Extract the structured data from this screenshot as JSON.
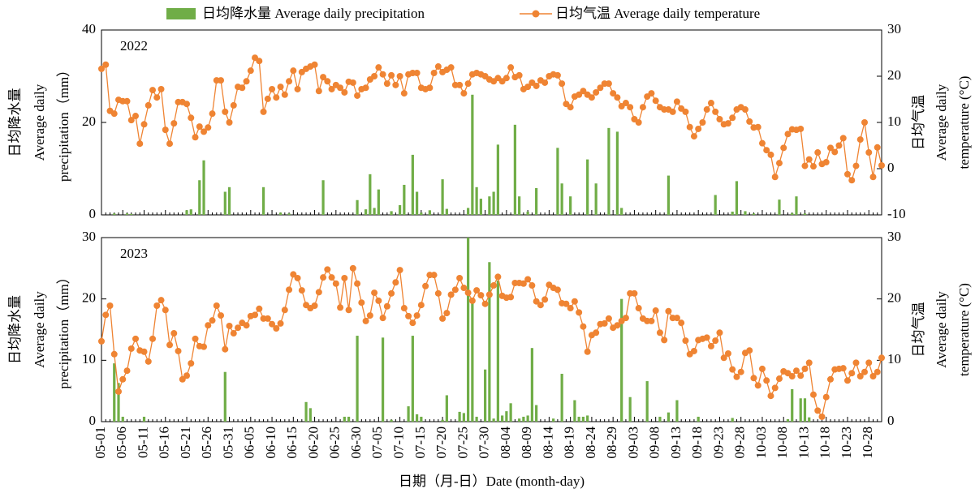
{
  "chart_data": [
    {
      "type": "combo",
      "label": "2022",
      "series": [
        {
          "name": "日均降水量 Average daily precipitation",
          "type": "bar",
          "color": "#70ad47",
          "axis": "y",
          "values": [
            0,
            0,
            0,
            0.3,
            0,
            0,
            0.3,
            0.2,
            0,
            0,
            0,
            0,
            0,
            0,
            0,
            0,
            0,
            0,
            0,
            0,
            1,
            1.2,
            0,
            7.5,
            11.8,
            0,
            0,
            0,
            0,
            5,
            6,
            0,
            0,
            0,
            0,
            0,
            0,
            0,
            6,
            0,
            0,
            0,
            0.5,
            0,
            0.3,
            0,
            0,
            0,
            0,
            0,
            0,
            0,
            7.5,
            0,
            0,
            0,
            0,
            0,
            0,
            0,
            3.2,
            0,
            1.2,
            8.8,
            1.5,
            5.5,
            0,
            0,
            0.8,
            0,
            2.1,
            6.5,
            0,
            13,
            5,
            0.5,
            0,
            1,
            0,
            0,
            7.7,
            1.3,
            0,
            0,
            0,
            0,
            1.5,
            26,
            6,
            3.5,
            0,
            4,
            5,
            15.2,
            0,
            0,
            0,
            19.5,
            4,
            0,
            0.7,
            0,
            5.8,
            0,
            0,
            0,
            0,
            14.5,
            6.8,
            0,
            4,
            0,
            0,
            0,
            12,
            0,
            6.8,
            0,
            0,
            18.8,
            0,
            18,
            1.5,
            0,
            0,
            0,
            0,
            0,
            0,
            0,
            0,
            0,
            0,
            8.5,
            0,
            0,
            0,
            0,
            0,
            0,
            0,
            0,
            0,
            0,
            4.3,
            0,
            0,
            0,
            0.7,
            7.3,
            0,
            0.8,
            0,
            0.3,
            0,
            0,
            0,
            0,
            0,
            3.3,
            0,
            0,
            0.4,
            4,
            0,
            0.3,
            0,
            0,
            0,
            0,
            0,
            0,
            0,
            0,
            0,
            0,
            0,
            0,
            0,
            0,
            0,
            0,
            0,
            0
          ]
        },
        {
          "name": "日均气温 Average daily temperature",
          "type": "line",
          "color": "#ef8433",
          "axis": "y2",
          "values": [
            21.6,
            22.5,
            12.5,
            11.9,
            14.9,
            14.6,
            14.6,
            10.5,
            11.4,
            5.4,
            9.6,
            13.7,
            17,
            15.4,
            17.2,
            8.4,
            5.4,
            9.8,
            14.4,
            14.4,
            14,
            11,
            6.8,
            9.1,
            8,
            8.9,
            11.9,
            19.1,
            19.1,
            12.3,
            10,
            13.7,
            17.7,
            17.5,
            18.9,
            21.2,
            24,
            23.3,
            12.3,
            15.1,
            17.2,
            15.4,
            17.7,
            16,
            18.9,
            21.2,
            17.2,
            20.9,
            21.6,
            22.1,
            22.5,
            16.8,
            19.8,
            18.9,
            17.2,
            18.1,
            17.5,
            16.5,
            18.8,
            18.6,
            15.8,
            17.2,
            17.5,
            19.3,
            20,
            21.9,
            20.4,
            18.4,
            20.2,
            18.1,
            20,
            16.3,
            20.4,
            20.7,
            20.7,
            17.5,
            17.2,
            17.5,
            20.7,
            22.1,
            20.9,
            21.4,
            21.9,
            18.1,
            18.1,
            16.3,
            18.4,
            20.4,
            20.7,
            20.4,
            20,
            19.3,
            18.9,
            19.6,
            18.9,
            19.6,
            21.9,
            19.8,
            20.2,
            17.2,
            17.7,
            18.6,
            17.9,
            19.1,
            18.6,
            20,
            20.4,
            20.2,
            18.4,
            14,
            13.3,
            15.6,
            16,
            16.8,
            16,
            15.4,
            16.5,
            17.5,
            18.4,
            18.4,
            16.3,
            15.4,
            13.5,
            14.2,
            13.3,
            10.7,
            10,
            13.3,
            15.6,
            16.3,
            14.7,
            13.3,
            12.8,
            12.8,
            12.3,
            14.5,
            13,
            12.3,
            9,
            7,
            8.6,
            10,
            12.8,
            14.2,
            12.3,
            10.7,
            9.6,
            9.8,
            11,
            12.8,
            13.3,
            12.8,
            10.2,
            8.9,
            9,
            5.5,
            4,
            3,
            -1.8,
            1.2,
            4.5,
            7.5,
            8.5,
            8.4,
            8.6,
            0.6,
            2,
            0.5,
            3.5,
            1,
            1.4,
            4.5,
            3.6,
            5,
            6.6,
            -1.2,
            -2.5,
            0.6,
            6.3,
            10,
            3.5,
            -1.8,
            4.6,
            0.7
          ]
        }
      ],
      "ylim": [
        0,
        40
      ],
      "yticks": [
        0,
        20,
        40
      ],
      "y2lim": [
        -10,
        30
      ],
      "y2ticks": [
        -10,
        0,
        10,
        20,
        30
      ],
      "ylabel": [
        "日均降水量",
        "Average daily",
        "precipitation（mm）"
      ],
      "y2label": [
        "日均气温",
        "Average daily",
        "temperature (°C)"
      ]
    },
    {
      "type": "combo",
      "label": "2023",
      "categories": [
        "05-01",
        null,
        null,
        null,
        null,
        "05-06",
        null,
        null,
        null,
        null,
        "05-11",
        null,
        null,
        null,
        null,
        "05-16",
        null,
        null,
        null,
        null,
        "05-21",
        null,
        null,
        null,
        null,
        "05-26",
        null,
        null,
        null,
        null,
        "05-31",
        null,
        null,
        null,
        null,
        "06-05",
        null,
        null,
        null,
        null,
        "06-10",
        null,
        null,
        null,
        null,
        "06-15",
        null,
        null,
        null,
        null,
        "06-20",
        null,
        null,
        null,
        null,
        "06-25",
        null,
        null,
        null,
        null,
        "06-30",
        null,
        null,
        null,
        null,
        "07-05",
        null,
        null,
        null,
        null,
        "07-10",
        null,
        null,
        null,
        null,
        "07-15",
        null,
        null,
        null,
        null,
        "07-20",
        null,
        null,
        null,
        null,
        "07-25",
        null,
        null,
        null,
        null,
        "07-30",
        null,
        null,
        null,
        null,
        "08-04",
        null,
        null,
        null,
        null,
        "08-09",
        null,
        null,
        null,
        null,
        "08-14",
        null,
        null,
        null,
        null,
        "08-19",
        null,
        null,
        null,
        null,
        "08-24",
        null,
        null,
        null,
        null,
        "08-29",
        null,
        null,
        null,
        null,
        "09-03",
        null,
        null,
        null,
        null,
        "09-08",
        null,
        null,
        null,
        null,
        "09-13",
        null,
        null,
        null,
        null,
        "09-18",
        null,
        null,
        null,
        null,
        "09-23",
        null,
        null,
        null,
        null,
        "09-28",
        null,
        null,
        null,
        null,
        "10-03",
        null,
        null,
        null,
        null,
        "10-08",
        null,
        null,
        null,
        null,
        "10-13",
        null,
        null,
        null,
        null,
        "10-18",
        null,
        null,
        null,
        null,
        "10-23",
        null,
        null,
        null,
        null,
        "10-28",
        null,
        null,
        null
      ],
      "series": [
        {
          "type": "bar",
          "color": "#70ad47",
          "axis": "y",
          "values": [
            0,
            0,
            0,
            9.5,
            6.3,
            0.8,
            0,
            0,
            0,
            0,
            0.8,
            0,
            0,
            0,
            0,
            0,
            0,
            0,
            0,
            0,
            0,
            0,
            0,
            0,
            0,
            0,
            0,
            0,
            0,
            8.1,
            0,
            0,
            0,
            0,
            0,
            0,
            0,
            0,
            0,
            0,
            0,
            0,
            0,
            0,
            0,
            0,
            0,
            0,
            3.2,
            2.2,
            0,
            0,
            0,
            0,
            0,
            0,
            0,
            0.8,
            0.8,
            0,
            14,
            0,
            0,
            0,
            0,
            0,
            13.7,
            0,
            0.3,
            0,
            0,
            0,
            2.5,
            14,
            1.2,
            0.8,
            0,
            0,
            0,
            0,
            0.3,
            4.3,
            0,
            0,
            1.6,
            1.4,
            30,
            20,
            0.8,
            0,
            8.5,
            26,
            0.5,
            23,
            1,
            1.7,
            3,
            0,
            0.5,
            0.8,
            1,
            12,
            2.7,
            0,
            0,
            0,
            0.5,
            0,
            7.8,
            0,
            0,
            3.5,
            0.8,
            0.8,
            1,
            0,
            0,
            0,
            0,
            0,
            0,
            0,
            20,
            0,
            4,
            0,
            0,
            0,
            6.6,
            0,
            0,
            0.8,
            0,
            1.5,
            0,
            3.5,
            0,
            0,
            0,
            0,
            0.8,
            0,
            0,
            0,
            0,
            0,
            0,
            0,
            0.6,
            0,
            0,
            0,
            0,
            0,
            0,
            0,
            0,
            0,
            0,
            0,
            0,
            0.4,
            5.3,
            0,
            3.8,
            3.8,
            0.7,
            0,
            0,
            0,
            0,
            0,
            0,
            0,
            0,
            0,
            0,
            0,
            0,
            0,
            0,
            0,
            0,
            0
          ]
        },
        {
          "type": "line",
          "color": "#ef8433",
          "axis": "y2",
          "values": [
            13.1,
            17.4,
            18.9,
            11,
            4.9,
            6.9,
            8.3,
            11.9,
            13.5,
            11.6,
            11.4,
            9.8,
            13.5,
            18.9,
            19.8,
            18.2,
            12.5,
            14.4,
            11.5,
            6.9,
            7.5,
            9.5,
            13.5,
            12.3,
            12.2,
            15.7,
            16.5,
            18.9,
            17.3,
            11.8,
            15.6,
            14.4,
            15.3,
            16.1,
            15.7,
            17.2,
            17.4,
            18.4,
            16.8,
            16.8,
            15.9,
            15.2,
            16,
            18.2,
            21.5,
            24,
            23.4,
            21.4,
            19,
            18.5,
            18.9,
            21.1,
            23.5,
            24.8,
            23.5,
            22.5,
            18.6,
            23.4,
            18.2,
            25,
            22.5,
            19.4,
            16.4,
            17.3,
            21,
            19.7,
            16.9,
            18.8,
            20.9,
            22.7,
            24.7,
            18.5,
            17.2,
            16.1,
            17.3,
            19,
            22.1,
            23.9,
            23.9,
            20.9,
            16.8,
            17.7,
            20.7,
            21.5,
            23.4,
            21.8,
            21,
            19.7,
            21.4,
            20.6,
            19.2,
            20.7,
            22.2,
            23.6,
            20.5,
            20.2,
            20.3,
            22.6,
            22.6,
            22.5,
            23.2,
            22.2,
            19.6,
            19,
            19.9,
            22.3,
            21.8,
            21.5,
            19.3,
            19.2,
            18.5,
            19.6,
            17.8,
            15.5,
            11.4,
            14.1,
            14.5,
            15.9,
            16,
            16.8,
            15.3,
            15.7,
            16.4,
            16.9,
            20.9,
            20.9,
            18.5,
            16.8,
            16.4,
            16.4,
            18.1,
            14.5,
            13.3,
            18,
            16.9,
            16.9,
            16.1,
            13.2,
            11,
            11.5,
            13.3,
            13.5,
            13.7,
            12.3,
            13.2,
            14.5,
            10.4,
            11.1,
            8.5,
            7.3,
            8.1,
            11.2,
            11.6,
            7.1,
            5.9,
            8.6,
            6.7,
            4.2,
            5.5,
            7,
            8.2,
            7.9,
            7.4,
            8.3,
            7.5,
            8.6,
            9.6,
            4.4,
            1.8,
            0.8,
            4,
            6.9,
            8.5,
            8.6,
            8.7,
            6.7,
            7.9,
            9.6,
            7.4,
            8.1,
            9.6,
            7.4,
            8.1,
            10.4
          ]
        }
      ],
      "ylim": [
        0,
        30
      ],
      "yticks": [
        0,
        10,
        20,
        30
      ],
      "y2lim": [
        0,
        30
      ],
      "y2ticks": [
        0,
        10,
        20,
        30
      ],
      "ylabel": [
        "日均降水量",
        "Average daily",
        "precipitation（mm）"
      ],
      "y2label": [
        "日均气温",
        "Average daily",
        "temperature (°C)"
      ],
      "xlabel": "日期（月-日）Date (month-day)"
    }
  ]
}
